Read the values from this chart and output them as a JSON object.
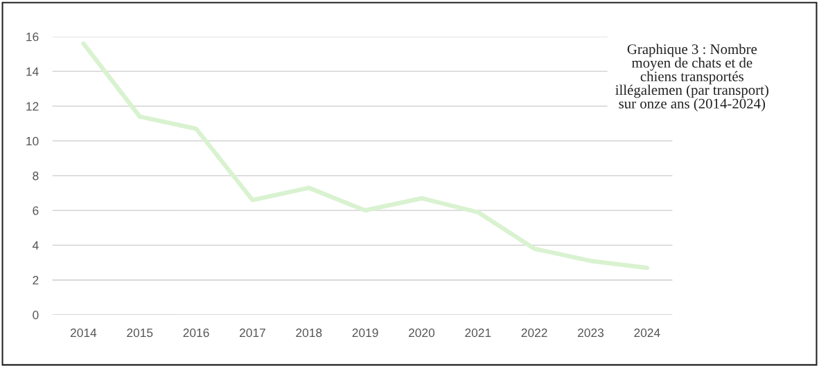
{
  "chart_data": {
    "type": "line",
    "title": "Graphique 3 : Nombre moyen de chats et de chiens transportés illégalemen (par transport) sur onze ans (2014-2024)",
    "categories": [
      "2014",
      "2015",
      "2016",
      "2017",
      "2018",
      "2019",
      "2020",
      "2021",
      "2022",
      "2023",
      "2024"
    ],
    "series": [
      {
        "color": "#d9f2d0",
        "values": [
          15.6,
          11.4,
          10.7,
          6.6,
          7.3,
          6.0,
          6.7,
          5.9,
          3.8,
          3.1,
          2.7
        ]
      }
    ],
    "ylim": [
      0,
      16
    ],
    "yticks": [
      0,
      2,
      4,
      6,
      8,
      10,
      12,
      14,
      16
    ],
    "grid": "y",
    "marker": "none",
    "line_style": "solid"
  }
}
